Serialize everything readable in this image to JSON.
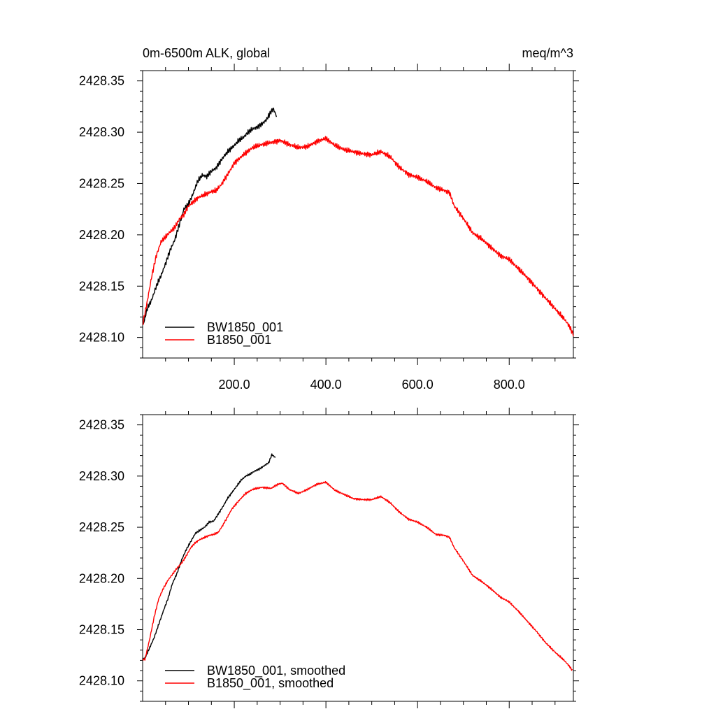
{
  "figure": {
    "title_left": "0m-6500m ALK, global",
    "title_right": "meq/m^3"
  },
  "chart_data": [
    {
      "type": "line",
      "name": "raw",
      "xlim": [
        0,
        940
      ],
      "ylim": [
        2428.08,
        2428.36
      ],
      "x_ticks": [
        200,
        400,
        600,
        800
      ],
      "x_tick_labels": [
        "200.0",
        "400.0",
        "600.0",
        "800.0"
      ],
      "y_ticks": [
        2428.1,
        2428.15,
        2428.2,
        2428.25,
        2428.3,
        2428.35
      ],
      "y_tick_labels": [
        "2428.10",
        "2428.15",
        "2428.20",
        "2428.25",
        "2428.30",
        "2428.35"
      ],
      "legend_position": "bottom-left",
      "noise": 0.003,
      "series": [
        {
          "name": "BW1850_001",
          "color": "#000000",
          "x_end": 292,
          "anchors": [
            [
              1,
              2428.112
            ],
            [
              10,
              2428.128
            ],
            [
              20,
              2428.137
            ],
            [
              30,
              2428.15
            ],
            [
              40,
              2428.16
            ],
            [
              50,
              2428.172
            ],
            [
              60,
              2428.185
            ],
            [
              70,
              2428.195
            ],
            [
              80,
              2428.21
            ],
            [
              90,
              2428.225
            ],
            [
              100,
              2428.23
            ],
            [
              110,
              2428.24
            ],
            [
              120,
              2428.252
            ],
            [
              130,
              2428.258
            ],
            [
              140,
              2428.257
            ],
            [
              150,
              2428.262
            ],
            [
              160,
              2428.265
            ],
            [
              170,
              2428.272
            ],
            [
              180,
              2428.278
            ],
            [
              190,
              2428.283
            ],
            [
              200,
              2428.287
            ],
            [
              210,
              2428.292
            ],
            [
              220,
              2428.295
            ],
            [
              230,
              2428.3
            ],
            [
              240,
              2428.303
            ],
            [
              250,
              2428.305
            ],
            [
              260,
              2428.308
            ],
            [
              270,
              2428.312
            ],
            [
              280,
              2428.32
            ],
            [
              285,
              2428.323
            ],
            [
              292,
              2428.316
            ]
          ]
        },
        {
          "name": "B1850_001",
          "color": "#ff0000",
          "x_end": 940,
          "anchors": [
            [
              1,
              2428.115
            ],
            [
              10,
              2428.135
            ],
            [
              20,
              2428.16
            ],
            [
              30,
              2428.18
            ],
            [
              40,
              2428.193
            ],
            [
              50,
              2428.198
            ],
            [
              60,
              2428.203
            ],
            [
              70,
              2428.207
            ],
            [
              80,
              2428.215
            ],
            [
              90,
              2428.22
            ],
            [
              100,
              2428.228
            ],
            [
              110,
              2428.232
            ],
            [
              120,
              2428.236
            ],
            [
              130,
              2428.238
            ],
            [
              140,
              2428.24
            ],
            [
              150,
              2428.242
            ],
            [
              160,
              2428.243
            ],
            [
              170,
              2428.248
            ],
            [
              180,
              2428.255
            ],
            [
              190,
              2428.262
            ],
            [
              200,
              2428.27
            ],
            [
              220,
              2428.278
            ],
            [
              240,
              2428.285
            ],
            [
              260,
              2428.288
            ],
            [
              280,
              2428.29
            ],
            [
              300,
              2428.292
            ],
            [
              320,
              2428.288
            ],
            [
              340,
              2428.285
            ],
            [
              360,
              2428.286
            ],
            [
              380,
              2428.291
            ],
            [
              400,
              2428.294
            ],
            [
              420,
              2428.287
            ],
            [
              440,
              2428.283
            ],
            [
              460,
              2428.281
            ],
            [
              480,
              2428.279
            ],
            [
              500,
              2428.278
            ],
            [
              520,
              2428.281
            ],
            [
              540,
              2428.276
            ],
            [
              560,
              2428.266
            ],
            [
              580,
              2428.259
            ],
            [
              600,
              2428.256
            ],
            [
              620,
              2428.252
            ],
            [
              640,
              2428.246
            ],
            [
              660,
              2428.243
            ],
            [
              670,
              2428.241
            ],
            [
              680,
              2428.228
            ],
            [
              700,
              2428.216
            ],
            [
              720,
              2428.202
            ],
            [
              740,
              2428.196
            ],
            [
              760,
              2428.188
            ],
            [
              780,
              2428.18
            ],
            [
              800,
              2428.176
            ],
            [
              820,
              2428.167
            ],
            [
              840,
              2428.158
            ],
            [
              860,
              2428.148
            ],
            [
              880,
              2428.138
            ],
            [
              900,
              2428.128
            ],
            [
              920,
              2428.118
            ],
            [
              930,
              2428.112
            ],
            [
              940,
              2428.103
            ]
          ]
        }
      ]
    },
    {
      "type": "line",
      "name": "smoothed",
      "xlim": [
        0,
        940
      ],
      "ylim": [
        2428.08,
        2428.36
      ],
      "x_ticks": [
        200,
        400,
        600,
        800
      ],
      "x_tick_labels": [],
      "y_ticks": [
        2428.1,
        2428.15,
        2428.2,
        2428.25,
        2428.3,
        2428.35
      ],
      "y_tick_labels": [
        "2428.10",
        "2428.15",
        "2428.20",
        "2428.25",
        "2428.30",
        "2428.35"
      ],
      "legend_position": "bottom-left",
      "noise": 0.0012,
      "series": [
        {
          "name": "BW1850_001, smoothed",
          "color": "#000000",
          "x_end": 290,
          "anchors": [
            [
              5,
              2428.122
            ],
            [
              15,
              2428.132
            ],
            [
              25,
              2428.142
            ],
            [
              35,
              2428.155
            ],
            [
              45,
              2428.168
            ],
            [
              55,
              2428.18
            ],
            [
              65,
              2428.195
            ],
            [
              75,
              2428.205
            ],
            [
              85,
              2428.218
            ],
            [
              95,
              2428.228
            ],
            [
              105,
              2428.236
            ],
            [
              115,
              2428.244
            ],
            [
              125,
              2428.247
            ],
            [
              135,
              2428.25
            ],
            [
              145,
              2428.255
            ],
            [
              155,
              2428.256
            ],
            [
              165,
              2428.263
            ],
            [
              175,
              2428.27
            ],
            [
              185,
              2428.278
            ],
            [
              195,
              2428.284
            ],
            [
              205,
              2428.29
            ],
            [
              215,
              2428.296
            ],
            [
              225,
              2428.3
            ],
            [
              235,
              2428.302
            ],
            [
              245,
              2428.305
            ],
            [
              255,
              2428.307
            ],
            [
              265,
              2428.31
            ],
            [
              275,
              2428.313
            ],
            [
              282,
              2428.321
            ],
            [
              290,
              2428.318
            ]
          ]
        },
        {
          "name": "B1850_001, smoothed",
          "color": "#ff0000",
          "x_end": 938,
          "anchors": [
            [
              5,
              2428.121
            ],
            [
              15,
              2428.14
            ],
            [
              25,
              2428.162
            ],
            [
              35,
              2428.18
            ],
            [
              45,
              2428.19
            ],
            [
              55,
              2428.198
            ],
            [
              65,
              2428.204
            ],
            [
              75,
              2428.21
            ],
            [
              85,
              2428.215
            ],
            [
              95,
              2428.222
            ],
            [
              105,
              2428.23
            ],
            [
              115,
              2428.235
            ],
            [
              125,
              2428.238
            ],
            [
              135,
              2428.24
            ],
            [
              145,
              2428.242
            ],
            [
              155,
              2428.243
            ],
            [
              165,
              2428.245
            ],
            [
              175,
              2428.252
            ],
            [
              185,
              2428.26
            ],
            [
              195,
              2428.268
            ],
            [
              210,
              2428.276
            ],
            [
              225,
              2428.283
            ],
            [
              240,
              2428.287
            ],
            [
              260,
              2428.289
            ],
            [
              280,
              2428.288
            ],
            [
              295,
              2428.292
            ],
            [
              305,
              2428.293
            ],
            [
              320,
              2428.287
            ],
            [
              340,
              2428.283
            ],
            [
              360,
              2428.287
            ],
            [
              380,
              2428.292
            ],
            [
              400,
              2428.294
            ],
            [
              420,
              2428.286
            ],
            [
              440,
              2428.282
            ],
            [
              460,
              2428.278
            ],
            [
              480,
              2428.277
            ],
            [
              500,
              2428.277
            ],
            [
              520,
              2428.28
            ],
            [
              540,
              2428.274
            ],
            [
              560,
              2428.265
            ],
            [
              580,
              2428.258
            ],
            [
              600,
              2428.255
            ],
            [
              620,
              2428.25
            ],
            [
              640,
              2428.243
            ],
            [
              660,
              2428.242
            ],
            [
              670,
              2428.24
            ],
            [
              680,
              2428.23
            ],
            [
              700,
              2428.217
            ],
            [
              720,
              2428.203
            ],
            [
              740,
              2428.197
            ],
            [
              760,
              2428.19
            ],
            [
              780,
              2428.182
            ],
            [
              800,
              2428.177
            ],
            [
              820,
              2428.168
            ],
            [
              840,
              2428.158
            ],
            [
              860,
              2428.148
            ],
            [
              880,
              2428.137
            ],
            [
              900,
              2428.128
            ],
            [
              920,
              2428.12
            ],
            [
              930,
              2428.115
            ],
            [
              938,
              2428.11
            ]
          ]
        }
      ]
    }
  ]
}
